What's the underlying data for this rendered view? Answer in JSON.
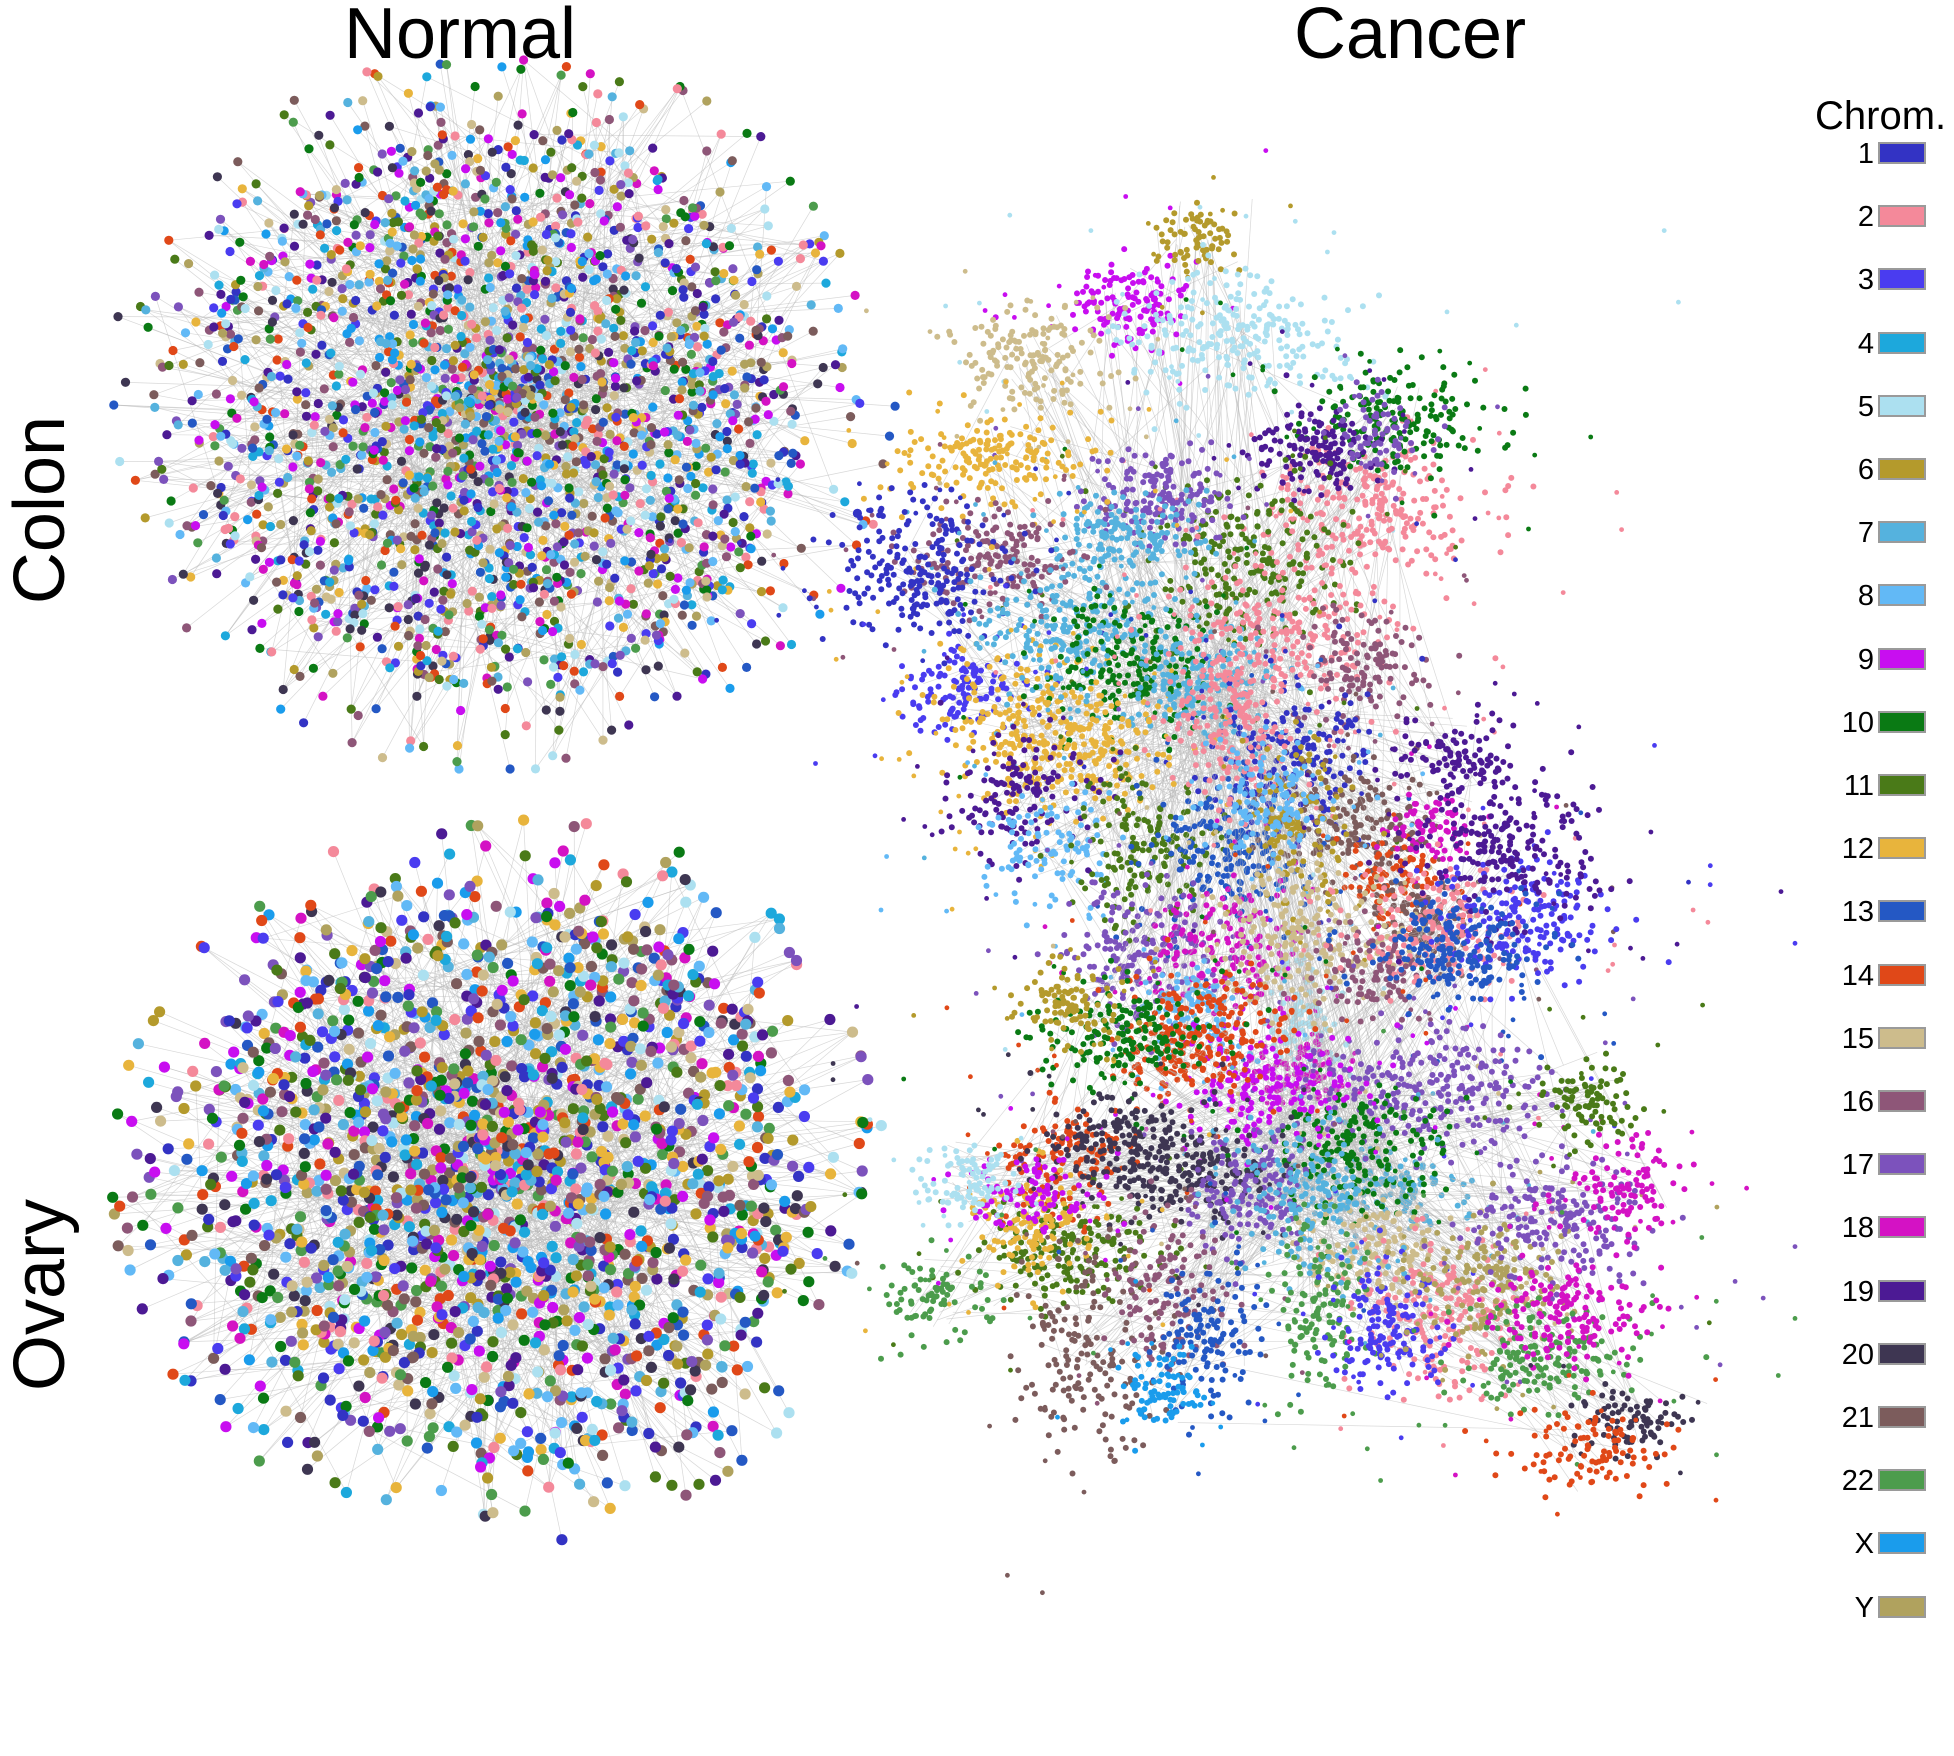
{
  "columns": [
    "Normal",
    "Cancer"
  ],
  "rows": [
    "Colon",
    "Ovary"
  ],
  "legend": {
    "title": "Chrom.",
    "items": [
      {
        "label": "1",
        "color": "#3333c4"
      },
      {
        "label": "2",
        "color": "#f4899a"
      },
      {
        "label": "3",
        "color": "#4a3cf0"
      },
      {
        "label": "4",
        "color": "#1da8dc"
      },
      {
        "label": "5",
        "color": "#ace0f0"
      },
      {
        "label": "6",
        "color": "#b49a2c"
      },
      {
        "label": "7",
        "color": "#55b2de"
      },
      {
        "label": "8",
        "color": "#62b9f6"
      },
      {
        "label": "9",
        "color": "#c80ef0"
      },
      {
        "label": "10",
        "color": "#0a7a14"
      },
      {
        "label": "11",
        "color": "#4a7a18"
      },
      {
        "label": "12",
        "color": "#e8b43c"
      },
      {
        "label": "13",
        "color": "#2458c4"
      },
      {
        "label": "14",
        "color": "#e04818"
      },
      {
        "label": "15",
        "color": "#cdbc8c"
      },
      {
        "label": "16",
        "color": "#8e5678"
      },
      {
        "label": "17",
        "color": "#7c52bc"
      },
      {
        "label": "18",
        "color": "#d412c4"
      },
      {
        "label": "19",
        "color": "#4c1a94"
      },
      {
        "label": "20",
        "color": "#3e3652"
      },
      {
        "label": "21",
        "color": "#7c5c5c"
      },
      {
        "label": "22",
        "color": "#4c9c4c"
      },
      {
        "label": "X",
        "color": "#1a9cec"
      },
      {
        "label": "Y",
        "color": "#b0a25e"
      }
    ]
  }
}
